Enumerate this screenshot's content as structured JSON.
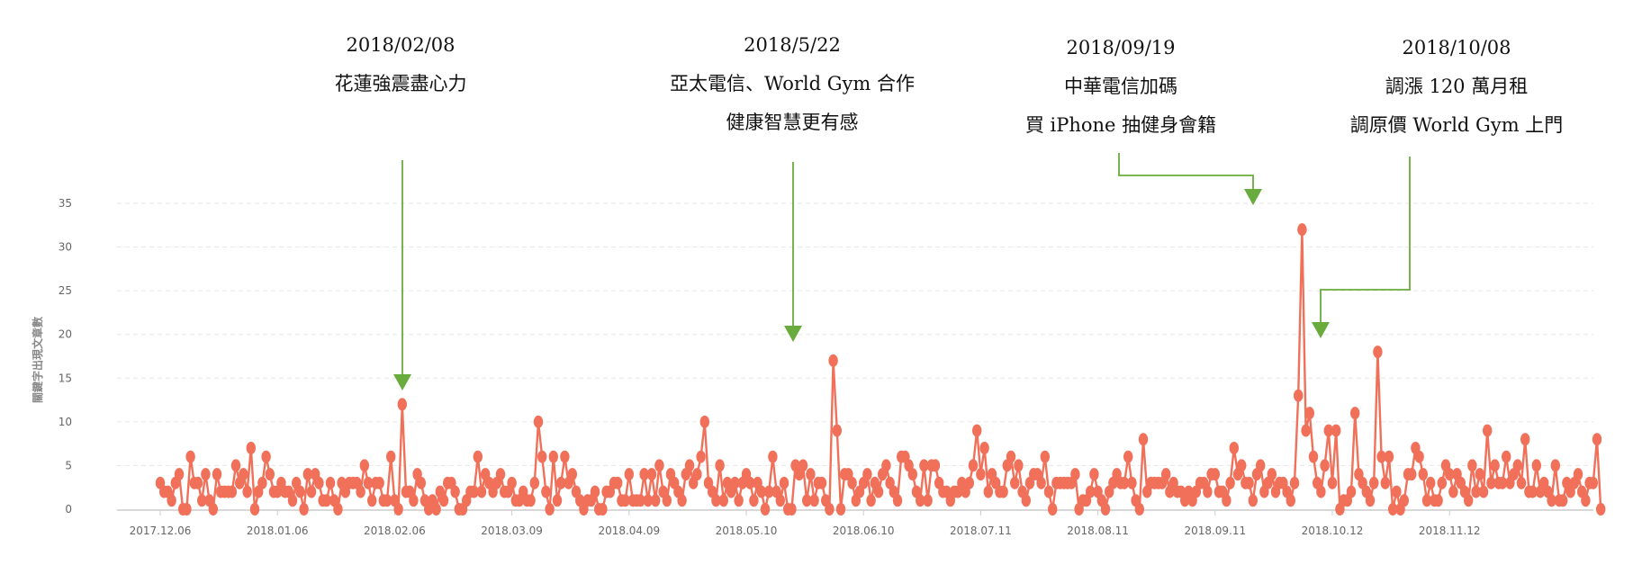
{
  "chart_data": {
    "type": "line",
    "title": "",
    "ylabel": "關鍵字出現文章數",
    "xlabel": "",
    "ylim": [
      0,
      35
    ],
    "yticks": [
      0,
      5,
      10,
      15,
      20,
      25,
      30,
      35
    ],
    "xticks": [
      "2017.12.06",
      "2018.01.06",
      "2018.02.06",
      "2018.03.09",
      "2018.04.09",
      "2018.05.10",
      "2018.06.10",
      "2018.07.11",
      "2018.08.11",
      "2018.09.11",
      "2018.10.12",
      "2018.11.12"
    ],
    "start_date": "2017-12-06",
    "grid": "horizontal-dashed",
    "legend": "none",
    "series": [
      {
        "color": "#f0705a",
        "values": [
          3,
          2,
          2,
          1,
          3,
          4,
          0,
          0,
          6,
          3,
          3,
          1,
          4,
          1,
          0,
          4,
          2,
          2,
          2,
          2,
          5,
          3,
          4,
          2,
          7,
          0,
          2,
          3,
          6,
          4,
          2,
          2,
          3,
          2,
          2,
          1,
          3,
          2,
          0,
          4,
          2,
          4,
          3,
          1,
          1,
          3,
          1,
          0,
          3,
          2,
          3,
          3,
          3,
          2,
          5,
          3,
          1,
          3,
          3,
          1,
          1,
          6,
          1,
          0,
          12,
          2,
          2,
          1,
          4,
          3,
          1,
          0,
          1,
          0,
          2,
          1,
          3,
          3,
          2,
          0,
          0,
          1,
          2,
          2,
          6,
          2,
          4,
          3,
          2,
          3,
          4,
          2,
          2,
          3,
          1,
          1,
          2,
          1,
          1,
          3,
          10,
          6,
          2,
          0,
          6,
          1,
          3,
          6,
          3,
          4,
          2,
          1,
          0,
          1,
          1,
          2,
          0,
          0,
          2,
          2,
          3,
          3,
          1,
          1,
          4,
          1,
          1,
          1,
          4,
          1,
          4,
          1,
          5,
          2,
          1,
          4,
          3,
          2,
          1,
          4,
          5,
          3,
          4,
          6,
          10,
          3,
          2,
          1,
          5,
          1,
          3,
          2,
          3,
          1,
          3,
          4,
          3,
          1,
          3,
          2,
          0,
          2,
          6,
          2,
          1,
          3,
          0,
          0,
          5,
          4,
          5,
          1,
          4,
          1,
          3,
          3,
          1,
          0,
          17,
          9,
          0,
          4,
          4,
          3,
          1,
          2,
          3,
          4,
          1,
          3,
          2,
          4,
          5,
          3,
          2,
          1,
          6,
          6,
          5,
          4,
          2,
          1,
          5,
          1,
          5,
          5,
          3,
          2,
          2,
          1,
          2,
          2,
          3,
          2,
          3,
          5,
          9,
          4,
          7,
          2,
          4,
          3,
          2,
          2,
          5,
          6,
          3,
          5,
          2,
          1,
          3,
          4,
          4,
          3,
          6,
          2,
          0,
          3,
          3,
          3,
          3,
          3,
          4,
          0,
          1,
          1,
          2,
          4,
          2,
          1,
          0,
          2,
          3,
          4,
          3,
          3,
          6,
          3,
          1,
          0,
          8,
          2,
          3,
          3,
          3,
          3,
          4,
          2,
          3,
          2,
          2,
          1,
          2,
          1,
          2,
          3,
          3,
          2,
          4,
          4,
          2,
          2,
          1,
          3,
          7,
          4,
          5,
          3,
          3,
          1,
          4,
          5,
          2,
          3,
          4,
          2,
          3,
          3,
          2,
          1,
          3,
          13,
          32,
          9,
          11,
          6,
          3,
          2,
          5,
          9,
          3,
          9,
          0,
          1,
          1,
          2,
          11,
          4,
          3,
          2,
          1,
          3,
          18,
          6,
          3,
          6,
          0,
          2,
          0,
          1,
          4,
          4,
          7,
          6,
          4,
          1,
          3,
          1,
          1,
          3,
          5,
          4,
          2,
          4,
          3,
          2,
          1,
          5,
          2,
          4,
          2,
          9,
          3,
          5,
          3,
          3,
          6,
          3,
          4,
          5,
          3,
          8,
          2,
          2,
          5,
          2,
          3,
          2,
          1,
          5,
          1,
          1,
          3,
          2,
          3,
          4,
          2,
          1,
          3,
          3,
          8,
          0
        ]
      }
    ],
    "annotations": [
      {
        "date": "2018/02/08",
        "lines": [
          "2018/02/08",
          "花蓮強震盡心力"
        ],
        "value": 12
      },
      {
        "date": "2018/5/22",
        "lines": [
          "2018/5/22",
          "亞太電信、World Gym 合作",
          "健康智慧更有感"
        ],
        "value": 17
      },
      {
        "date": "2018/09/19",
        "lines": [
          "2018/09/19",
          "中華電信加碼",
          "買 iPhone 抽健身會籍"
        ],
        "value": 32
      },
      {
        "date": "2018/10/08",
        "lines": [
          "2018/10/08",
          "調漲 120 萬月租",
          "調原價 World Gym 上門"
        ],
        "value": 18
      }
    ],
    "colors": {
      "line": "#f0705a",
      "marker": "#f0705a",
      "arrow": "#6aab3d",
      "grid": "#e6e6e6",
      "axis": "#cccccc"
    }
  }
}
